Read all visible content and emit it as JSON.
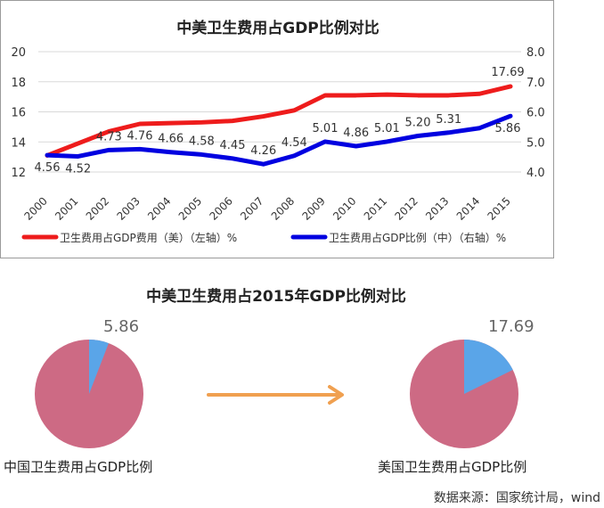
{
  "chart_data": [
    {
      "type": "line",
      "title": "中美卫生费用占GDP比例对比",
      "x": [
        "2000",
        "2001",
        "2002",
        "2003",
        "2004",
        "2005",
        "2006",
        "2007",
        "2008",
        "2009",
        "2010",
        "2011",
        "2012",
        "2013",
        "2014",
        "2015"
      ],
      "series": [
        {
          "name": "卫生费用占GDP费用（美）（左轴）%",
          "axis": "left",
          "color": "#ee1c1c",
          "values": [
            13.1,
            13.9,
            14.7,
            15.2,
            15.25,
            15.3,
            15.4,
            15.7,
            16.1,
            17.1,
            17.1,
            17.15,
            17.1,
            17.1,
            17.2,
            17.69
          ],
          "labels": [
            "",
            "",
            "",
            "",
            "",
            "",
            "",
            "",
            "",
            "",
            "",
            "",
            "",
            "",
            "",
            "17.69"
          ]
        },
        {
          "name": "卫生费用占GDP比例（中）（右轴）%",
          "axis": "right",
          "color": "#0000e0",
          "values": [
            4.56,
            4.52,
            4.73,
            4.76,
            4.66,
            4.58,
            4.45,
            4.26,
            4.54,
            5.01,
            4.86,
            5.01,
            5.2,
            5.31,
            5.46,
            5.86
          ],
          "labels": [
            "4.56",
            "4.52",
            "4.73",
            "4.76",
            "4.66",
            "4.58",
            "4.45",
            "4.26",
            "4.54",
            "5.01",
            "4.86",
            "5.01",
            "5.20",
            "5.31",
            "",
            "5.86"
          ]
        }
      ],
      "y_left": {
        "lim": [
          12,
          20
        ],
        "ticks": [
          "12",
          "14",
          "16",
          "18",
          "20"
        ]
      },
      "y_right": {
        "lim": [
          4.0,
          8.0
        ],
        "ticks": [
          "4.0",
          "5.0",
          "6.0",
          "7.0",
          "8.0"
        ]
      },
      "grid": true,
      "legend_position": "bottom"
    },
    {
      "type": "pie",
      "title": "中美卫生费用占2015年GDP比例对比",
      "charts": [
        {
          "label": "中国卫生费用占GDP比例",
          "value_text": "5.86",
          "value": 5.86,
          "total": 100,
          "slice_color": "#5aa5e8",
          "rest_color": "#cd6a84"
        },
        {
          "label": "美国卫生费用占GDP比例",
          "value_text": "17.69",
          "value": 17.69,
          "total": 100,
          "slice_color": "#5aa5e8",
          "rest_color": "#cd6a84"
        }
      ],
      "arrow_color": "#f0a050"
    }
  ],
  "source": "数据来源：国家统计局，wind"
}
